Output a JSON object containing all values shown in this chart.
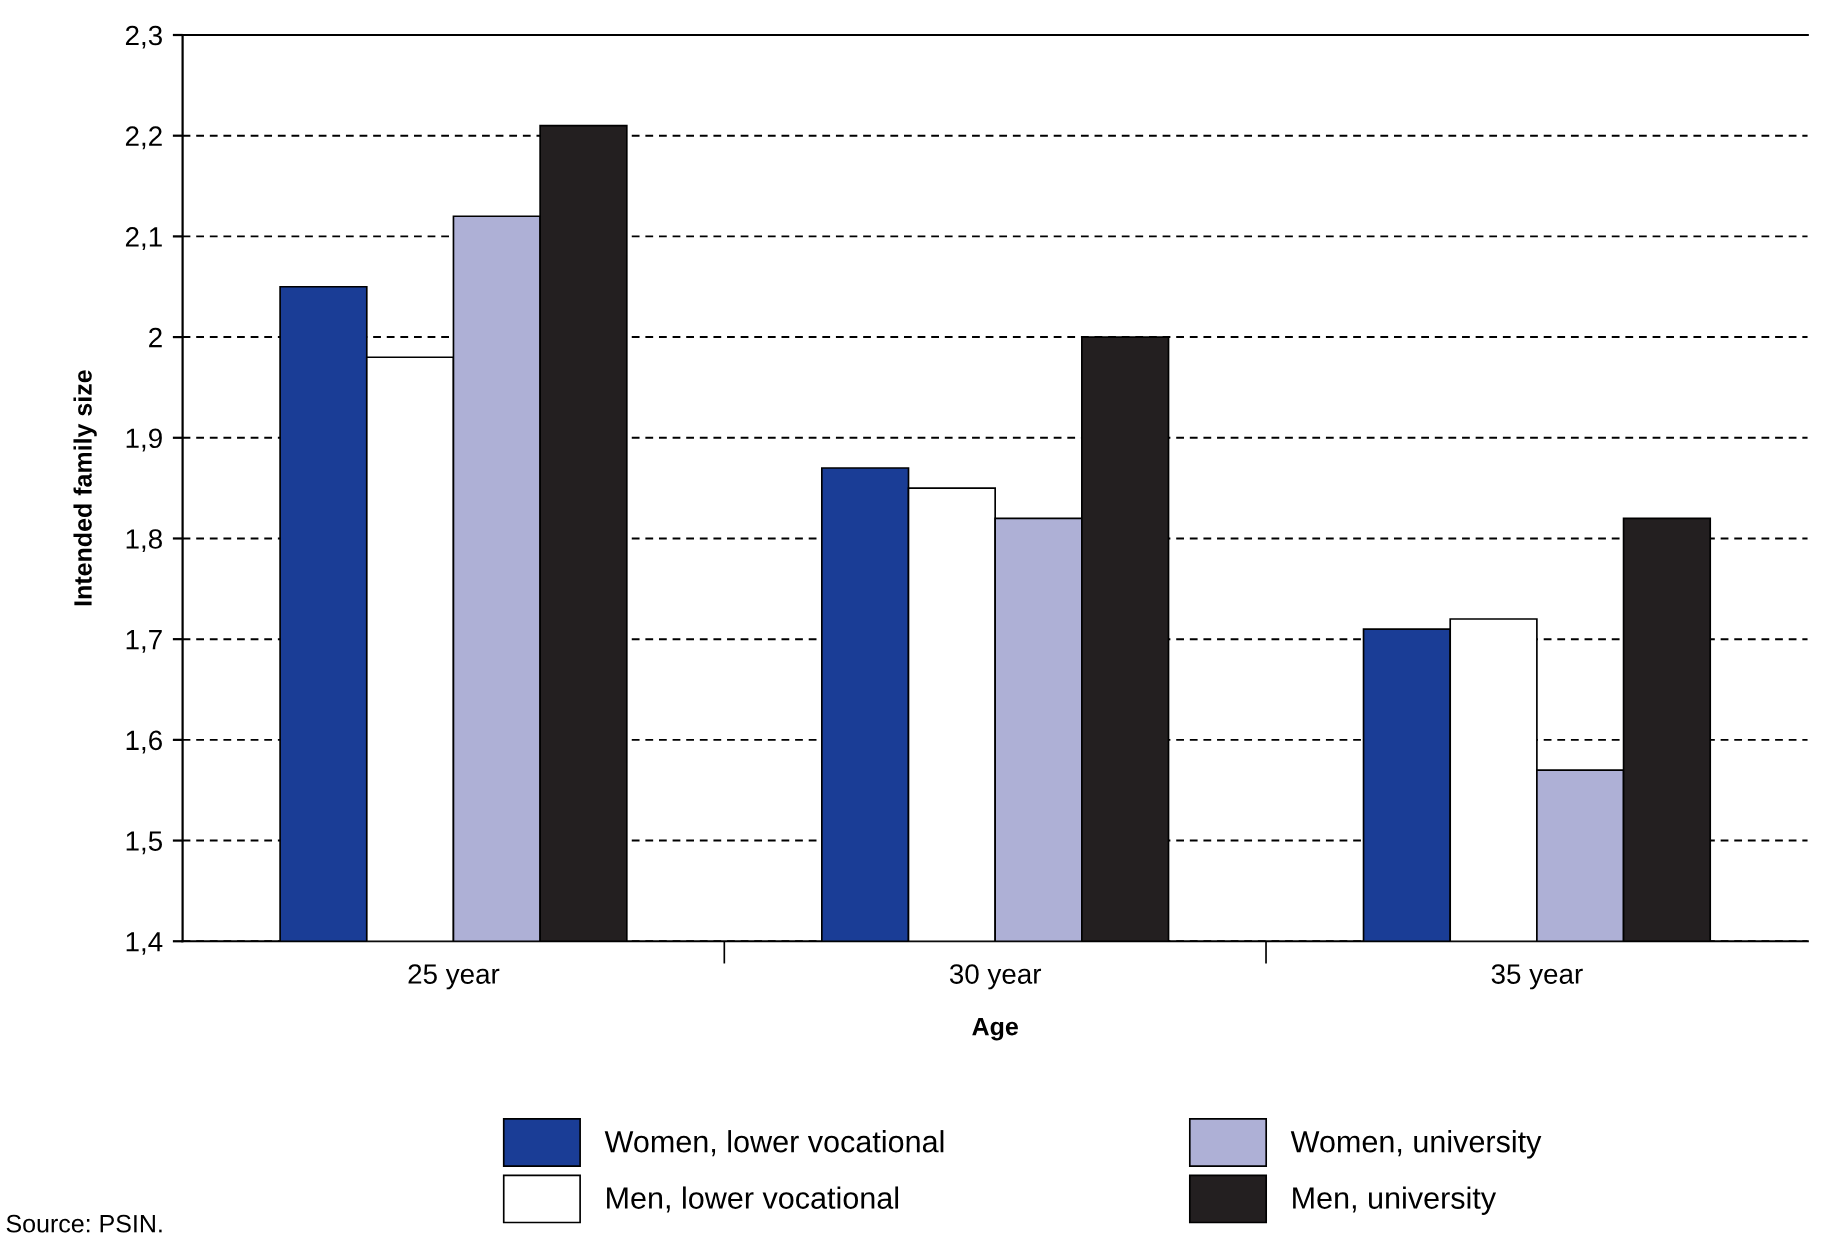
{
  "chart_data": {
    "type": "bar",
    "xlabel": "Age",
    "ylabel": "Intended family size",
    "categories": [
      "25 year",
      "30 year",
      "35 year"
    ],
    "series": [
      {
        "name": "Women, lower vocational",
        "color": "#1a3d96",
        "values": [
          2.05,
          1.87,
          1.71
        ]
      },
      {
        "name": "Men, lower vocational",
        "color": "#ffffff",
        "values": [
          1.98,
          1.85,
          1.72
        ]
      },
      {
        "name": "Women, university",
        "color": "#aeb0d6",
        "values": [
          2.12,
          1.82,
          1.57
        ]
      },
      {
        "name": "Men, university",
        "color": "#231f20",
        "values": [
          2.21,
          2.0,
          1.82
        ]
      }
    ],
    "ylim": [
      1.4,
      2.3
    ],
    "yticks": [
      {
        "value": 1.4,
        "label": "1,4"
      },
      {
        "value": 1.5,
        "label": "1,5"
      },
      {
        "value": 1.6,
        "label": "1,6"
      },
      {
        "value": 1.7,
        "label": "1,7"
      },
      {
        "value": 1.8,
        "label": "1,8"
      },
      {
        "value": 1.9,
        "label": "1,9"
      },
      2,
      {
        "value": 2.1,
        "label": "2,1"
      },
      {
        "value": 2.2,
        "label": "2,2"
      },
      {
        "value": 2.3,
        "label": "2,3"
      }
    ],
    "grid": "y",
    "legend": "bottom",
    "annotations": [
      "Source: PSIN."
    ]
  }
}
